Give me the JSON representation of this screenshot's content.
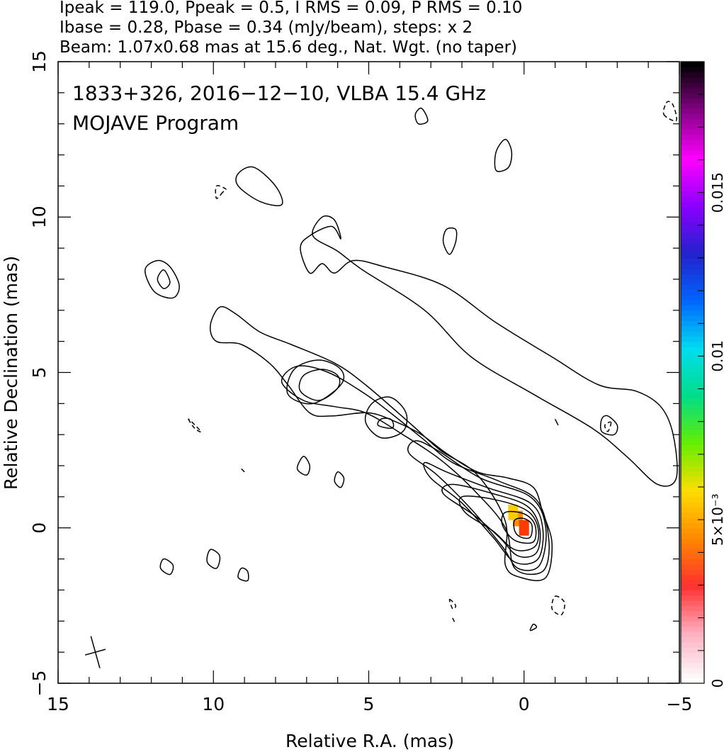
{
  "header": {
    "line1": "Ipeak = 119.0, Ppeak = 0.5, I RMS = 0.09, P RMS = 0.10",
    "line2": "Ibase = 0.28, Pbase = 0.34 (mJy/beam), steps: x 2",
    "line3": "Beam: 1.07x0.68 mas at 15.6 deg., Nat. Wgt. (no taper)"
  },
  "chart_data": {
    "type": "contour",
    "title": "1833+326, 2016−12−10, VLBA 15.4 GHz",
    "subtitle": "MOJAVE Program",
    "xlabel": "Relative R.A. (mas)",
    "ylabel": "Relative Declination (mas)",
    "xlim": [
      15,
      -5
    ],
    "ylim": [
      -5,
      15
    ],
    "x_ticks": [
      "15",
      "10",
      "5",
      "0",
      "−5"
    ],
    "x_tick_values": [
      15,
      10,
      5,
      0,
      -5
    ],
    "y_ticks": [
      "−5",
      "0",
      "5",
      "10",
      "15"
    ],
    "y_tick_values": [
      -5,
      0,
      5,
      10,
      15
    ],
    "colorbar": {
      "range": [
        0,
        0.019
      ],
      "tick_labels": [
        "0",
        "5×10⁻³",
        "0.01",
        "0.015"
      ],
      "tick_values": [
        0,
        0.005,
        0.01,
        0.015
      ],
      "colors": [
        "#ffffff",
        "#ffb0c0",
        "#ff3030",
        "#ff8800",
        "#ffdd00",
        "#66ee00",
        "#00dd88",
        "#00ddee",
        "#0066ff",
        "#2222cc",
        "#8800ff",
        "#ff00ff",
        "#880088",
        "#000000"
      ]
    },
    "beam": {
      "major_mas": 1.07,
      "minor_mas": 0.68,
      "pa_deg": 15.6,
      "center": [
        13.8,
        -4.0
      ]
    },
    "core": {
      "ra": 0.0,
      "dec": 0.0
    },
    "contour_levels_mJy": [
      0.28,
      0.56,
      1.12,
      2.24,
      4.48,
      8.96,
      17.92,
      35.84,
      71.68
    ],
    "contours": [
      {
        "name": "jet-outer",
        "dashed": false,
        "points": [
          [
            -0.7,
            -1.6
          ],
          [
            -0.9,
            -0.5
          ],
          [
            -0.6,
            0.5
          ],
          [
            -0.3,
            1.3
          ],
          [
            0.5,
            1.6
          ],
          [
            1.5,
            1.8
          ],
          [
            2.5,
            2.4
          ],
          [
            3.3,
            3.0
          ],
          [
            4.1,
            3.4
          ],
          [
            5.0,
            3.7
          ],
          [
            6.2,
            3.6
          ],
          [
            6.9,
            3.7
          ],
          [
            7.6,
            4.6
          ],
          [
            8.2,
            5.3
          ],
          [
            9.1,
            5.9
          ],
          [
            9.9,
            6.0
          ],
          [
            10.1,
            6.5
          ],
          [
            9.8,
            7.1
          ],
          [
            9.3,
            6.9
          ],
          [
            8.5,
            6.3
          ],
          [
            7.5,
            5.9
          ],
          [
            6.1,
            5.3
          ],
          [
            5.1,
            4.6
          ],
          [
            3.6,
            3.3
          ],
          [
            2.7,
            2.5
          ],
          [
            1.5,
            1.7
          ],
          [
            0.6,
            0.2
          ],
          [
            0.6,
            -1.2
          ],
          [
            0.1,
            -1.6
          ]
        ]
      },
      {
        "name": "jet-lvl2",
        "dashed": false,
        "points": [
          [
            -0.6,
            -1.4
          ],
          [
            -0.8,
            -0.4
          ],
          [
            -0.4,
            0.9
          ],
          [
            0.8,
            1.5
          ],
          [
            2.3,
            2.1
          ],
          [
            3.3,
            2.9
          ],
          [
            4.3,
            3.7
          ],
          [
            5.1,
            4.3
          ],
          [
            6.3,
            5.0
          ],
          [
            7.3,
            5.2
          ],
          [
            7.8,
            4.7
          ],
          [
            7.1,
            4.1
          ],
          [
            6.1,
            3.9
          ],
          [
            5.1,
            3.7
          ],
          [
            3.9,
            3.0
          ],
          [
            2.7,
            2.2
          ],
          [
            1.6,
            1.2
          ],
          [
            0.6,
            0.0
          ],
          [
            0.3,
            -1.3
          ]
        ]
      },
      {
        "name": "knot-4.5-lvl3",
        "dashed": false,
        "points": [
          [
            3.9,
            3.1
          ],
          [
            4.6,
            2.9
          ],
          [
            5.1,
            3.4
          ],
          [
            4.9,
            4.0
          ],
          [
            4.3,
            4.2
          ],
          [
            3.8,
            3.7
          ]
        ]
      },
      {
        "name": "knot-4.5-lvl4",
        "dashed": false,
        "points": [
          [
            4.3,
            3.2
          ],
          [
            4.7,
            3.3
          ],
          [
            4.6,
            3.5
          ],
          [
            4.3,
            3.5
          ],
          [
            4.2,
            3.3
          ]
        ]
      },
      {
        "name": "knot-6.5-lvl3",
        "dashed": false,
        "points": [
          [
            5.9,
            4.6
          ],
          [
            6.8,
            4.0
          ],
          [
            7.6,
            4.3
          ],
          [
            7.4,
            5.1
          ],
          [
            6.6,
            5.4
          ],
          [
            5.9,
            5.1
          ]
        ]
      },
      {
        "name": "knot-6.5-lvl4",
        "dashed": false,
        "points": [
          [
            6.0,
            4.5
          ],
          [
            6.6,
            4.1
          ],
          [
            7.2,
            4.4
          ],
          [
            7.1,
            4.9
          ],
          [
            6.5,
            5.1
          ],
          [
            6.0,
            4.9
          ]
        ]
      },
      {
        "name": "core-lvl4",
        "dashed": false,
        "points": [
          [
            -0.5,
            -1.2
          ],
          [
            -0.7,
            0.0
          ],
          [
            -0.2,
            1.0
          ],
          [
            1.4,
            1.6
          ],
          [
            2.8,
            2.5
          ],
          [
            3.5,
            2.8
          ],
          [
            3.7,
            2.4
          ],
          [
            2.8,
            1.7
          ],
          [
            1.7,
            0.6
          ],
          [
            0.7,
            -0.6
          ],
          [
            0.2,
            -1.3
          ]
        ]
      },
      {
        "name": "core-lvl5",
        "dashed": false,
        "points": [
          [
            -0.45,
            -1.0
          ],
          [
            -0.6,
            0.0
          ],
          [
            -0.2,
            0.8
          ],
          [
            1.2,
            1.3
          ],
          [
            2.5,
            1.8
          ],
          [
            3.2,
            2.1
          ],
          [
            3.0,
            1.6
          ],
          [
            2.0,
            0.8
          ],
          [
            1.0,
            -0.3
          ],
          [
            0.3,
            -1.1
          ]
        ]
      },
      {
        "name": "core-lvl6",
        "dashed": false,
        "points": [
          [
            -0.4,
            -0.8
          ],
          [
            -0.5,
            0.0
          ],
          [
            -0.1,
            0.7
          ],
          [
            1.0,
            1.1
          ],
          [
            2.3,
            1.4
          ],
          [
            2.6,
            1.1
          ],
          [
            1.6,
            0.4
          ],
          [
            0.8,
            -0.3
          ],
          [
            0.2,
            -0.9
          ]
        ]
      },
      {
        "name": "core-lvl7",
        "dashed": false,
        "points": [
          [
            -0.35,
            -0.6
          ],
          [
            -0.45,
            0.0
          ],
          [
            -0.1,
            0.55
          ],
          [
            0.9,
            0.9
          ],
          [
            2.0,
            1.0
          ],
          [
            1.9,
            0.5
          ],
          [
            1.0,
            -0.1
          ],
          [
            0.3,
            -0.7
          ]
        ]
      },
      {
        "name": "core-lvl8",
        "dashed": false,
        "points": [
          [
            -0.3,
            -0.45
          ],
          [
            -0.35,
            0.1
          ],
          [
            0.0,
            0.45
          ],
          [
            0.6,
            0.5
          ],
          [
            0.7,
            0.1
          ],
          [
            0.3,
            -0.4
          ]
        ]
      },
      {
        "name": "core-lvl9",
        "dashed": false,
        "points": [
          [
            -0.2,
            -0.3
          ],
          [
            -0.25,
            0.1
          ],
          [
            0.0,
            0.3
          ],
          [
            0.3,
            0.25
          ],
          [
            0.3,
            -0.1
          ],
          [
            0.1,
            -0.3
          ]
        ]
      },
      {
        "name": "halo-ridge",
        "dashed": false,
        "points": [
          [
            5.9,
            9.3
          ],
          [
            6.1,
            9.9
          ],
          [
            6.5,
            10.0
          ],
          [
            6.8,
            9.4
          ],
          [
            6.0,
            8.9
          ],
          [
            5.2,
            8.3
          ],
          [
            3.2,
            7.0
          ],
          [
            1.7,
            5.5
          ],
          [
            -0.3,
            4.3
          ],
          [
            -2.2,
            3.2
          ],
          [
            -3.3,
            2.3
          ],
          [
            -4.3,
            1.4
          ],
          [
            -4.9,
            1.6
          ],
          [
            -4.8,
            3.0
          ],
          [
            -4.4,
            3.9
          ],
          [
            -3.6,
            4.4
          ],
          [
            -2.4,
            4.6
          ],
          [
            -0.9,
            5.5
          ],
          [
            0.9,
            6.6
          ],
          [
            2.6,
            7.8
          ],
          [
            4.5,
            8.4
          ],
          [
            5.5,
            8.6
          ],
          [
            6.1,
            8.2
          ],
          [
            6.5,
            8.5
          ],
          [
            6.9,
            8.2
          ],
          [
            7.2,
            9.0
          ],
          [
            6.9,
            9.4
          ],
          [
            6.2,
            9.7
          ]
        ]
      },
      {
        "name": "blob-11",
        "dashed": false,
        "points": [
          [
            8.7,
            11.6
          ],
          [
            8.0,
            11.0
          ],
          [
            7.8,
            10.4
          ],
          [
            8.5,
            10.5
          ],
          [
            9.2,
            11.0
          ],
          [
            9.2,
            11.4
          ]
        ]
      },
      {
        "name": "blob-12",
        "dashed": false,
        "points": [
          [
            0.6,
            12.5
          ],
          [
            0.9,
            12.1
          ],
          [
            0.9,
            11.5
          ],
          [
            0.5,
            11.6
          ],
          [
            0.4,
            12.1
          ]
        ]
      },
      {
        "name": "blob-9",
        "dashed": false,
        "points": [
          [
            2.5,
            9.6
          ],
          [
            2.6,
            9.2
          ],
          [
            2.4,
            8.8
          ],
          [
            2.2,
            9.2
          ],
          [
            2.2,
            9.6
          ]
        ]
      },
      {
        "name": "blob-8-outer",
        "dashed": false,
        "points": [
          [
            11.8,
            8.6
          ],
          [
            12.2,
            8.3
          ],
          [
            11.9,
            7.6
          ],
          [
            11.3,
            7.4
          ],
          [
            11.1,
            7.8
          ],
          [
            11.4,
            8.4
          ]
        ]
      },
      {
        "name": "blob-8-inner",
        "dashed": false,
        "points": [
          [
            11.6,
            8.3
          ],
          [
            11.8,
            8.0
          ],
          [
            11.6,
            7.7
          ],
          [
            11.4,
            7.9
          ]
        ]
      },
      {
        "name": "blob-13a",
        "dashed": false,
        "points": [
          [
            3.5,
            13.3
          ],
          [
            3.3,
            13.5
          ],
          [
            3.1,
            13.1
          ],
          [
            3.4,
            13.0
          ]
        ]
      },
      {
        "name": "blob-13b",
        "dashed": true,
        "points": [
          [
            -4.5,
            13.3
          ],
          [
            -4.9,
            13.1
          ],
          [
            -4.8,
            13.6
          ],
          [
            -4.6,
            13.7
          ]
        ]
      },
      {
        "name": "blob-10.6",
        "dashed": true,
        "points": [
          [
            9.7,
            10.8
          ],
          [
            9.9,
            10.6
          ],
          [
            9.9,
            11.0
          ],
          [
            9.6,
            10.9
          ]
        ]
      },
      {
        "name": "knot-west",
        "dashed": false,
        "points": [
          [
            -2.7,
            3.6
          ],
          [
            -3.0,
            3.3
          ],
          [
            -2.9,
            3.0
          ],
          [
            -2.5,
            3.1
          ],
          [
            -2.5,
            3.5
          ]
        ]
      },
      {
        "name": "knot-west-inner",
        "dashed": true,
        "points": [
          [
            -2.8,
            3.4
          ],
          [
            -2.7,
            3.1
          ],
          [
            -2.6,
            3.3
          ]
        ]
      },
      {
        "name": "mark-3.5",
        "dashed": false,
        "points": [
          [
            -1.0,
            3.5
          ],
          [
            -1.1,
            3.3
          ]
        ]
      },
      {
        "name": "blob-2a",
        "dashed": false,
        "points": [
          [
            7.1,
            2.3
          ],
          [
            7.3,
            1.9
          ],
          [
            7.0,
            1.7
          ],
          [
            6.9,
            2.0
          ]
        ]
      },
      {
        "name": "blob-1.5",
        "dashed": false,
        "points": [
          [
            6.0,
            1.8
          ],
          [
            6.1,
            1.5
          ],
          [
            5.9,
            1.3
          ],
          [
            5.8,
            1.6
          ]
        ]
      },
      {
        "name": "blob-neg1",
        "dashed": false,
        "points": [
          [
            10.1,
            -0.7
          ],
          [
            10.2,
            -1.1
          ],
          [
            9.9,
            -1.3
          ],
          [
            9.8,
            -0.9
          ]
        ]
      },
      {
        "name": "blob-neg1.2",
        "dashed": false,
        "points": [
          [
            11.6,
            -1.0
          ],
          [
            11.7,
            -1.3
          ],
          [
            11.4,
            -1.5
          ],
          [
            11.3,
            -1.2
          ]
        ]
      },
      {
        "name": "blob-neg1.5",
        "dashed": false,
        "points": [
          [
            9.1,
            -1.3
          ],
          [
            9.2,
            -1.6
          ],
          [
            8.9,
            -1.7
          ],
          [
            8.9,
            -1.4
          ]
        ]
      },
      {
        "name": "dash-3.3",
        "dashed": true,
        "points": [
          [
            10.8,
            3.5
          ],
          [
            10.6,
            3.2
          ],
          [
            10.4,
            3.1
          ]
        ]
      },
      {
        "name": "mark-2",
        "dashed": false,
        "points": [
          [
            9.1,
            1.9
          ],
          [
            9.0,
            1.8
          ]
        ]
      },
      {
        "name": "dash-neg2.5",
        "dashed": true,
        "points": [
          [
            -1.0,
            -2.2
          ],
          [
            -1.3,
            -2.4
          ],
          [
            -1.2,
            -2.8
          ],
          [
            -0.9,
            -2.6
          ]
        ]
      },
      {
        "name": "blob-neg3.2",
        "dashed": false,
        "points": [
          [
            -0.3,
            -3.1
          ],
          [
            -0.4,
            -3.2
          ],
          [
            -0.2,
            -3.3
          ]
        ]
      },
      {
        "name": "dash-neg2.3",
        "dashed": true,
        "points": [
          [
            2.4,
            -2.3
          ],
          [
            2.2,
            -2.5
          ],
          [
            2.3,
            -2.6
          ]
        ]
      },
      {
        "name": "dash-neg2.9",
        "dashed": true,
        "points": [
          [
            2.3,
            -2.9
          ],
          [
            2.2,
            -3.1
          ]
        ]
      }
    ],
    "pol_patches": [
      {
        "ra": 0.2,
        "dec": 0.3,
        "color": "#ff8c00"
      },
      {
        "ra": 0.0,
        "dec": 0.0,
        "color": "#ff3a00"
      },
      {
        "ra": 0.35,
        "dec": 0.5,
        "color": "#ffcc00"
      }
    ]
  }
}
